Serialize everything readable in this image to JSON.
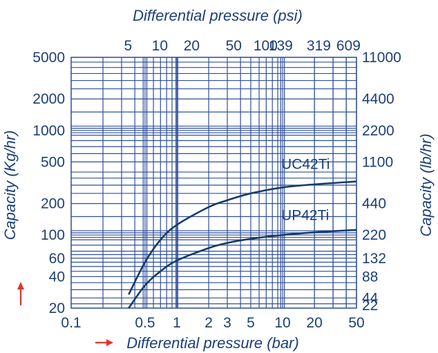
{
  "chart_data": {
    "type": "line",
    "title": "",
    "x_bottom": {
      "label": "Differential pressure (bar)",
      "scale": "log",
      "range": [
        0.1,
        50
      ],
      "ticks": [
        0.1,
        0.5,
        1,
        2,
        3,
        5,
        10,
        20,
        50
      ],
      "tick_labels": [
        "0.1",
        "0.5",
        "1",
        "2",
        "3",
        "5",
        "10",
        "20",
        "50"
      ]
    },
    "x_top": {
      "label": "Differential pressure (psi)",
      "tick_labels": [
        "5",
        "10",
        "20",
        "50",
        "100",
        "139",
        "319",
        "609"
      ],
      "tick_positions_bar": [
        0.345,
        0.69,
        1.38,
        3.45,
        6.9,
        9.6,
        22,
        42
      ]
    },
    "y_left": {
      "label": "Capacity (Kg/hr)",
      "scale": "log",
      "range": [
        20,
        5000
      ],
      "tick_labels": [
        "5000",
        "2000",
        "1000",
        "500",
        "200",
        "100",
        "60",
        "40",
        "20"
      ],
      "ticks": [
        5000,
        2000,
        1000,
        500,
        200,
        100,
        60,
        40,
        20
      ]
    },
    "y_right": {
      "label": "Capacity (lb/hr)",
      "tick_labels": [
        "11000",
        "4400",
        "2200",
        "1100",
        "440",
        "220",
        "132",
        "88",
        "44",
        "22"
      ],
      "ticks_kg": [
        5000,
        2000,
        1000,
        500,
        200,
        100,
        60,
        40,
        20,
        10
      ]
    },
    "grid": true,
    "series": [
      {
        "name": "UC42Ti",
        "x": [
          0.35,
          0.5,
          0.7,
          1,
          2,
          3,
          5,
          10,
          20,
          50
        ],
        "y": [
          27,
          55,
          90,
          125,
          185,
          215,
          250,
          285,
          305,
          325
        ]
      },
      {
        "name": "UP42Ti",
        "x": [
          0.35,
          0.5,
          0.7,
          1,
          2,
          3,
          5,
          10,
          20,
          50
        ],
        "y": [
          20,
          33,
          45,
          57,
          75,
          84,
          92,
          100,
          106,
          112
        ]
      }
    ]
  },
  "colors": {
    "grid": "#2f4f9a",
    "text": "#1c3f78",
    "curve": "#173a6c",
    "arrow": "#e0352b"
  }
}
